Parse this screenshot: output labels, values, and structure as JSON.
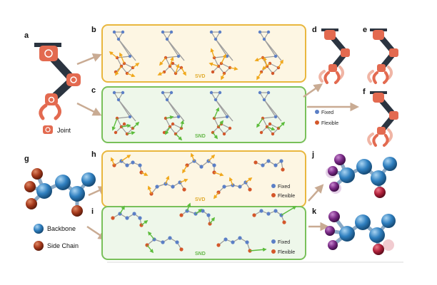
{
  "panel_labels": [
    "a",
    "b",
    "c",
    "d",
    "e",
    "f",
    "g",
    "h",
    "i",
    "j",
    "k"
  ],
  "box_tags": {
    "svd": "SVD",
    "snd": "SND"
  },
  "legend": {
    "fixed": "Fixed",
    "flexible": "Flexible",
    "joint": "Joint",
    "backbone": "Backbone",
    "side_chain": "Side Chain"
  },
  "colors": {
    "robot_orange": "#e36a50",
    "robot_dark": "#2b3440",
    "svd_border": "#e9b73e",
    "svd_fill": "#fdf6e3",
    "snd_border": "#79c05a",
    "snd_fill": "#eef7ea",
    "node_fixed": "#5b7fc6",
    "node_flexible": "#d4572a",
    "svd_arrow": "#f0a81c",
    "snd_arrow": "#5cbc3c",
    "flow_arrow": "#c9ab93",
    "atom_backbone": "#2f7fbf",
    "atom_side": "#a63a1c",
    "atom_purple": "#7a2a86",
    "atom_red": "#b0203a"
  }
}
